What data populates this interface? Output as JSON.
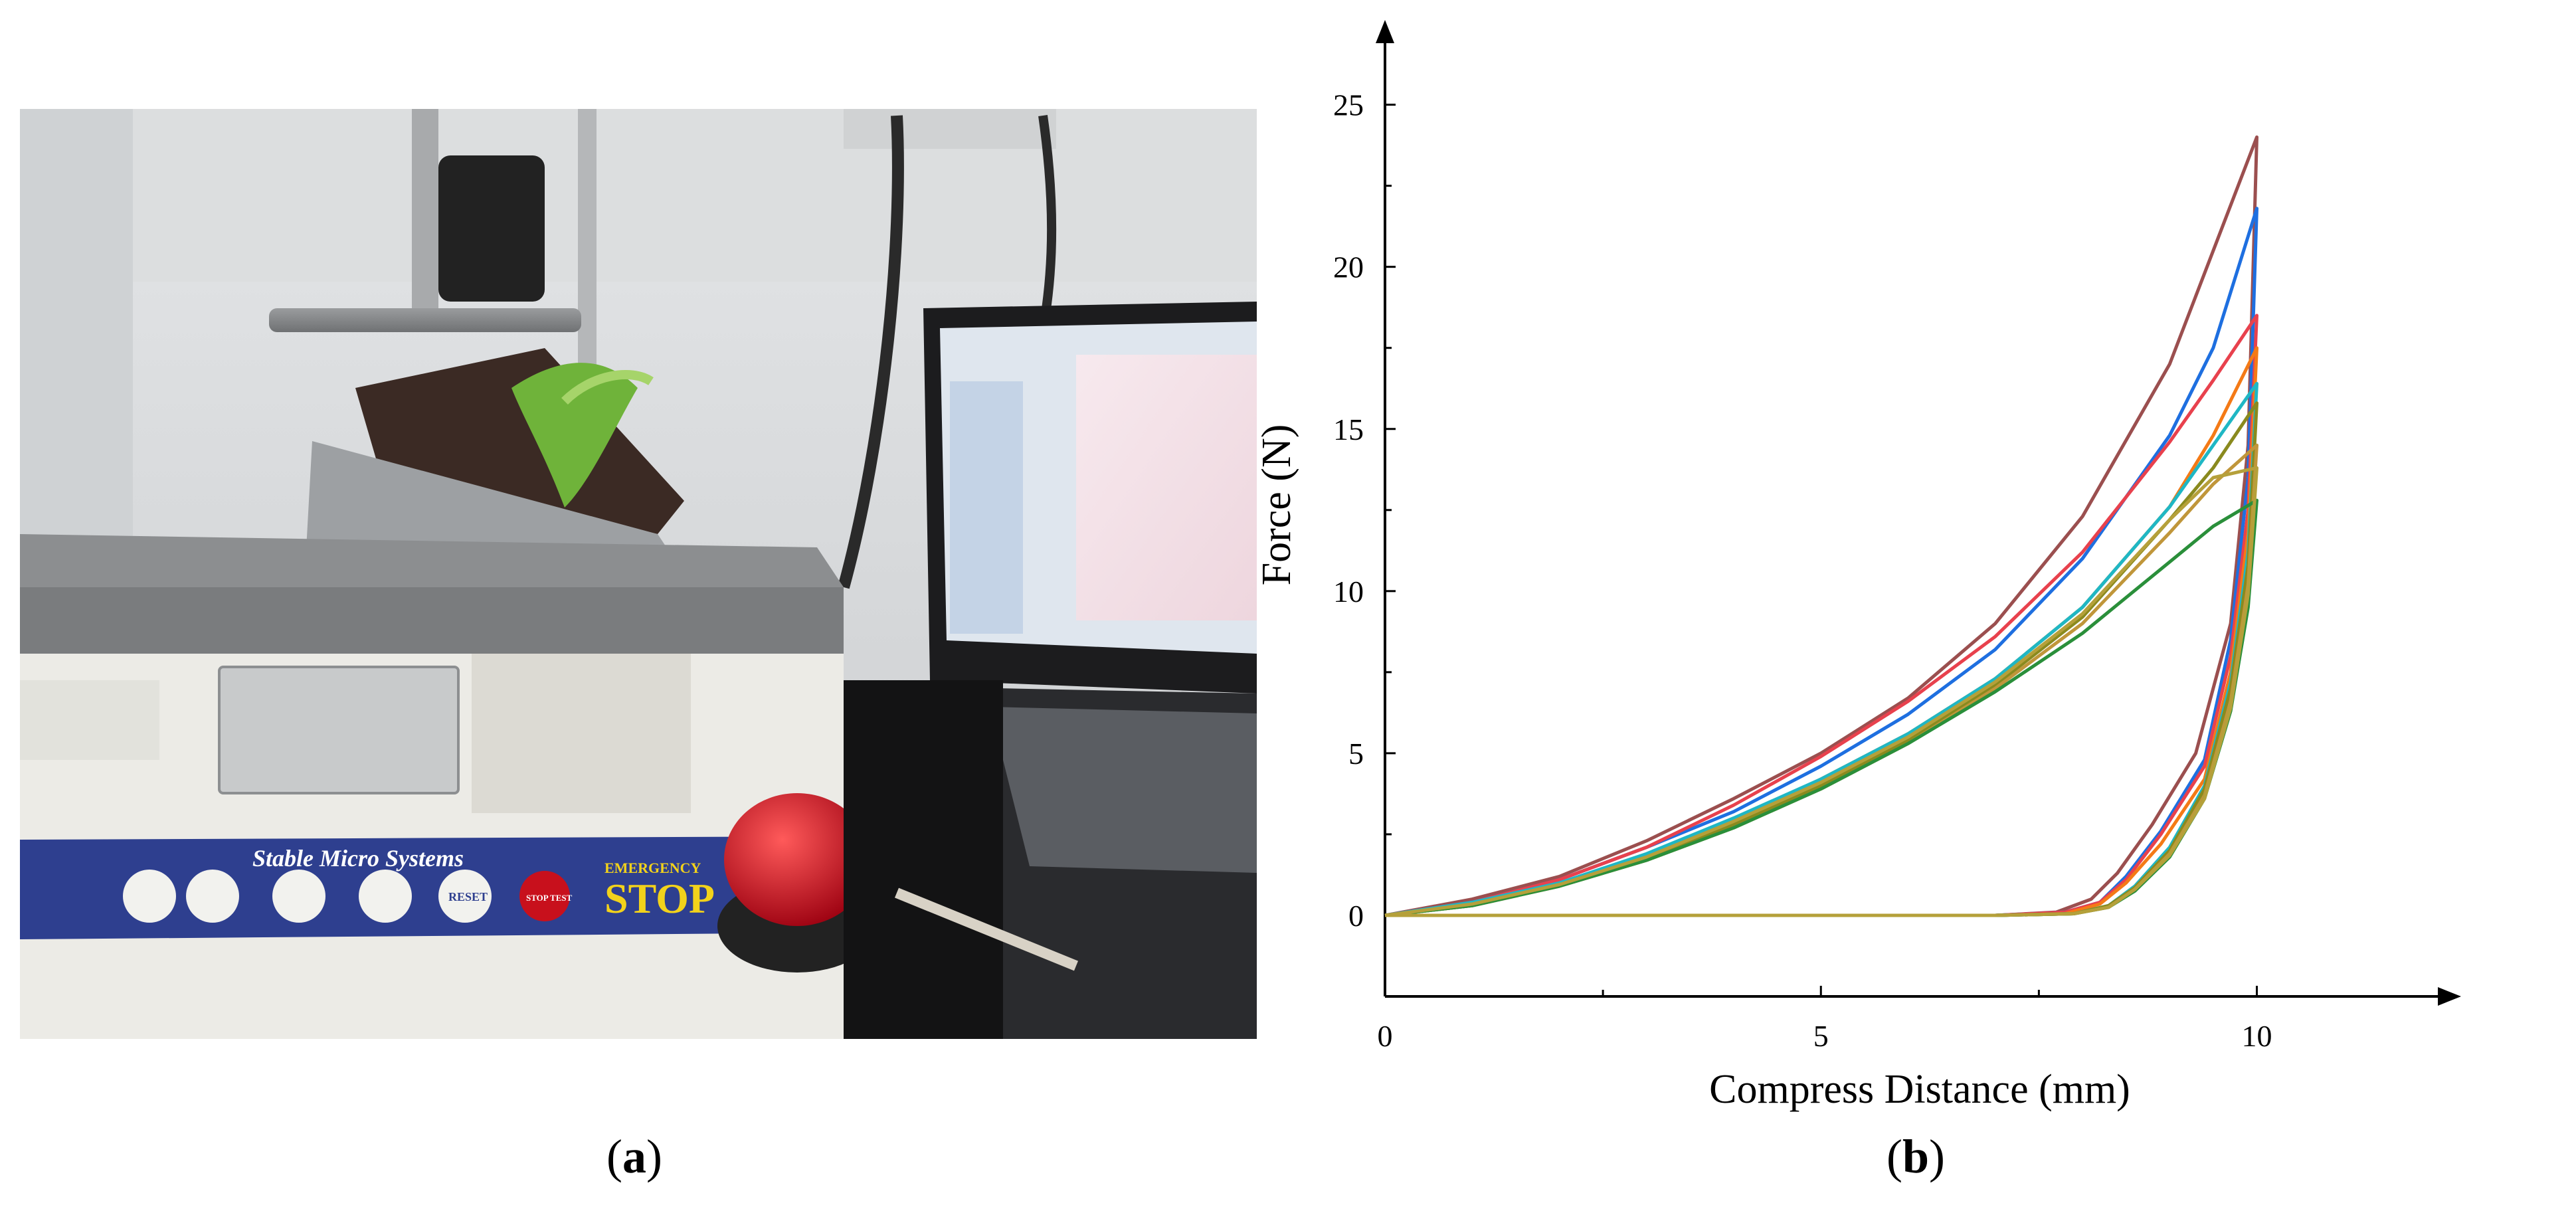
{
  "panel_a": {
    "caption_open": "(",
    "caption_letter": "a",
    "caption_close": ")",
    "panel_brand": "Stable Micro Systems",
    "emergency_label": "EMERGENCY",
    "stop_label": "STOP",
    "stop_button_label": "STOP TEST",
    "reset_label": "RESET",
    "colors": {
      "panel_blue": "#2e3f8f",
      "stop_yellow": "#f2d21b",
      "button_red": "#c8101c",
      "machine_white": "#f2f2ee"
    }
  },
  "panel_b": {
    "caption_open": "(",
    "caption_letter": "b",
    "caption_close": ")"
  },
  "chart_data": {
    "type": "line",
    "title": "",
    "xlabel": "Compress Distance (mm)",
    "ylabel": "Force (N)",
    "xlim": [
      0,
      12
    ],
    "ylim": [
      -2.5,
      27
    ],
    "xticks": [
      0,
      5,
      10
    ],
    "xtick_labels": [
      "0",
      "5",
      "10"
    ],
    "yticks": [
      0,
      5,
      10,
      15,
      20,
      25
    ],
    "ytick_labels": [
      "0",
      "5",
      "10",
      "15",
      "20",
      "25"
    ],
    "grid": false,
    "legend": "none",
    "series": [
      {
        "color": "#9b4f4f",
        "loading": [
          [
            0,
            0
          ],
          [
            1,
            0.5
          ],
          [
            2,
            1.2
          ],
          [
            3,
            2.3
          ],
          [
            4,
            3.6
          ],
          [
            5,
            5
          ],
          [
            6,
            6.7
          ],
          [
            7,
            9
          ],
          [
            8,
            12.3
          ],
          [
            9,
            17
          ],
          [
            9.5,
            20.5
          ],
          [
            10,
            24
          ]
        ],
        "unloading": [
          [
            10,
            24
          ],
          [
            9.9,
            14.5
          ],
          [
            9.7,
            9
          ],
          [
            9.3,
            5
          ],
          [
            8.8,
            2.8
          ],
          [
            8.4,
            1.3
          ],
          [
            8.1,
            0.5
          ],
          [
            7.7,
            0.1
          ],
          [
            7,
            0
          ],
          [
            4,
            0
          ],
          [
            0,
            0
          ]
        ]
      },
      {
        "color": "#1e6fe0",
        "loading": [
          [
            0,
            0
          ],
          [
            1,
            0.4
          ],
          [
            2,
            1.1
          ],
          [
            3,
            2.1
          ],
          [
            4,
            3.2
          ],
          [
            5,
            4.6
          ],
          [
            6,
            6.2
          ],
          [
            7,
            8.2
          ],
          [
            8,
            11
          ],
          [
            9,
            14.8
          ],
          [
            9.5,
            17.5
          ],
          [
            10,
            21.8
          ]
        ],
        "unloading": [
          [
            10,
            21.8
          ],
          [
            9.9,
            13.5
          ],
          [
            9.7,
            8.5
          ],
          [
            9.4,
            4.8
          ],
          [
            8.9,
            2.6
          ],
          [
            8.5,
            1.2
          ],
          [
            8.2,
            0.4
          ],
          [
            7.8,
            0.1
          ],
          [
            7,
            0
          ],
          [
            4,
            0
          ],
          [
            0,
            0
          ]
        ]
      },
      {
        "color": "#e8414d",
        "loading": [
          [
            0,
            0
          ],
          [
            1,
            0.4
          ],
          [
            2,
            1.1
          ],
          [
            3,
            2.1
          ],
          [
            4,
            3.4
          ],
          [
            5,
            4.9
          ],
          [
            6,
            6.6
          ],
          [
            7,
            8.6
          ],
          [
            8,
            11.2
          ],
          [
            9,
            14.6
          ],
          [
            9.5,
            16.5
          ],
          [
            10,
            18.5
          ]
        ],
        "unloading": [
          [
            10,
            18.5
          ],
          [
            9.9,
            12.5
          ],
          [
            9.7,
            8
          ],
          [
            9.4,
            4.6
          ],
          [
            8.9,
            2.5
          ],
          [
            8.5,
            1.1
          ],
          [
            8.2,
            0.4
          ],
          [
            7.8,
            0.1
          ],
          [
            7,
            0
          ],
          [
            4,
            0
          ],
          [
            0,
            0
          ]
        ]
      },
      {
        "color": "#f47a16",
        "loading": [
          [
            0,
            0
          ],
          [
            1,
            0.3
          ],
          [
            2,
            0.9
          ],
          [
            3,
            1.8
          ],
          [
            4,
            2.9
          ],
          [
            5,
            4.2
          ],
          [
            6,
            5.6
          ],
          [
            7,
            7.3
          ],
          [
            8,
            9.5
          ],
          [
            9,
            12.6
          ],
          [
            9.5,
            14.8
          ],
          [
            10,
            17.5
          ]
        ],
        "unloading": [
          [
            10,
            17.5
          ],
          [
            9.9,
            11.8
          ],
          [
            9.7,
            7.5
          ],
          [
            9.4,
            4.2
          ],
          [
            8.9,
            2.2
          ],
          [
            8.5,
            1
          ],
          [
            8.2,
            0.35
          ],
          [
            7.8,
            0.05
          ],
          [
            7,
            0
          ],
          [
            4,
            0
          ],
          [
            0,
            0
          ]
        ]
      },
      {
        "color": "#1fb7c4",
        "loading": [
          [
            0,
            0
          ],
          [
            1,
            0.4
          ],
          [
            2,
            1
          ],
          [
            3,
            1.9
          ],
          [
            4,
            3
          ],
          [
            5,
            4.2
          ],
          [
            6,
            5.6
          ],
          [
            7,
            7.3
          ],
          [
            8,
            9.5
          ],
          [
            9,
            12.6
          ],
          [
            9.5,
            14.5
          ],
          [
            10,
            16.4
          ]
        ],
        "unloading": [
          [
            10,
            16.4
          ],
          [
            9.9,
            11.2
          ],
          [
            9.7,
            7.2
          ],
          [
            9.4,
            4
          ],
          [
            9,
            2.1
          ],
          [
            8.6,
            0.9
          ],
          [
            8.3,
            0.3
          ],
          [
            7.9,
            0.05
          ],
          [
            7,
            0
          ],
          [
            4,
            0
          ],
          [
            0,
            0
          ]
        ]
      },
      {
        "color": "#8a8a1e",
        "loading": [
          [
            0,
            0
          ],
          [
            1,
            0.3
          ],
          [
            2,
            0.9
          ],
          [
            3,
            1.7
          ],
          [
            4,
            2.8
          ],
          [
            5,
            4
          ],
          [
            6,
            5.4
          ],
          [
            7,
            7.1
          ],
          [
            8,
            9.2
          ],
          [
            9,
            12.2
          ],
          [
            9.5,
            13.8
          ],
          [
            10,
            15.8
          ]
        ],
        "unloading": [
          [
            10,
            15.8
          ],
          [
            9.9,
            10.8
          ],
          [
            9.7,
            7
          ],
          [
            9.4,
            3.9
          ],
          [
            9,
            2
          ],
          [
            8.6,
            0.85
          ],
          [
            8.3,
            0.3
          ],
          [
            7.9,
            0.05
          ],
          [
            7,
            0
          ],
          [
            4,
            0
          ],
          [
            0,
            0
          ]
        ]
      },
      {
        "color": "#c0963a",
        "loading": [
          [
            0,
            0
          ],
          [
            1,
            0.3
          ],
          [
            2,
            0.9
          ],
          [
            3,
            1.7
          ],
          [
            4,
            2.7
          ],
          [
            5,
            3.9
          ],
          [
            6,
            5.3
          ],
          [
            7,
            7
          ],
          [
            8,
            9
          ],
          [
            9,
            11.8
          ],
          [
            9.5,
            13.3
          ],
          [
            10,
            14.5
          ]
        ],
        "unloading": [
          [
            10,
            14.5
          ],
          [
            9.9,
            10.2
          ],
          [
            9.7,
            6.6
          ],
          [
            9.4,
            3.7
          ],
          [
            9,
            1.9
          ],
          [
            8.6,
            0.8
          ],
          [
            8.3,
            0.25
          ],
          [
            7.9,
            0.05
          ],
          [
            7,
            0
          ],
          [
            4,
            0
          ],
          [
            0,
            0
          ]
        ]
      },
      {
        "color": "#2a8f3a",
        "loading": [
          [
            0,
            0
          ],
          [
            1,
            0.3
          ],
          [
            2,
            0.9
          ],
          [
            3,
            1.7
          ],
          [
            4,
            2.7
          ],
          [
            5,
            3.9
          ],
          [
            6,
            5.3
          ],
          [
            7,
            6.9
          ],
          [
            8,
            8.7
          ],
          [
            9,
            10.9
          ],
          [
            9.5,
            12
          ],
          [
            10,
            12.8
          ]
        ],
        "unloading": [
          [
            10,
            12.8
          ],
          [
            9.9,
            9.5
          ],
          [
            9.7,
            6.3
          ],
          [
            9.4,
            3.6
          ],
          [
            9,
            1.8
          ],
          [
            8.6,
            0.75
          ],
          [
            8.3,
            0.25
          ],
          [
            7.9,
            0.05
          ],
          [
            7,
            0
          ],
          [
            4,
            0
          ],
          [
            0,
            0
          ]
        ]
      },
      {
        "color": "#b5a03a",
        "loading": [
          [
            0,
            0
          ],
          [
            1,
            0.35
          ],
          [
            2,
            0.95
          ],
          [
            3,
            1.8
          ],
          [
            4,
            2.9
          ],
          [
            5,
            4.1
          ],
          [
            6,
            5.5
          ],
          [
            7,
            7.2
          ],
          [
            8,
            9.3
          ],
          [
            9,
            12.2
          ],
          [
            9.5,
            13.5
          ],
          [
            10,
            13.8
          ]
        ],
        "unloading": [
          [
            10,
            13.8
          ],
          [
            9.9,
            9.9
          ],
          [
            9.7,
            6.4
          ],
          [
            9.4,
            3.6
          ],
          [
            9,
            1.85
          ],
          [
            8.6,
            0.8
          ],
          [
            8.3,
            0.25
          ],
          [
            7.9,
            0.05
          ],
          [
            7,
            0
          ],
          [
            4,
            0
          ],
          [
            0,
            0
          ]
        ]
      }
    ]
  }
}
